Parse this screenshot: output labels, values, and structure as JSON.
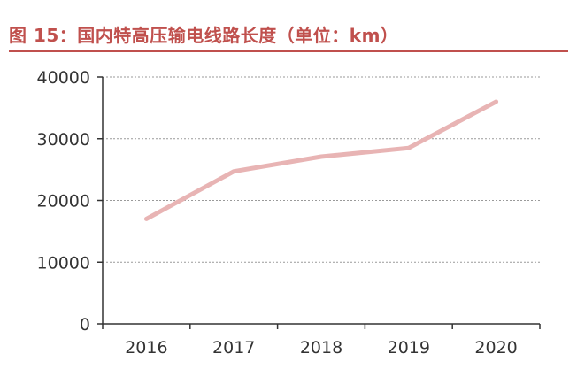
{
  "title": "图 15：国内特高压输电线路长度（单位：km）",
  "chart_data": {
    "type": "line",
    "title": "图 15：国内特高压输电线路长度（单位：km）",
    "xlabel": "",
    "ylabel": "",
    "categories": [
      "2016",
      "2017",
      "2018",
      "2019",
      "2020"
    ],
    "series": [
      {
        "values": [
          17000,
          24700,
          27100,
          28500,
          36000
        ]
      }
    ],
    "ylim": [
      0,
      40000
    ],
    "yticks": [
      "0",
      "10000",
      "20000",
      "30000",
      "40000"
    ],
    "grid": "horizontal-dotted",
    "line_color": "#e8b4b4",
    "axis_color": "#333333"
  }
}
